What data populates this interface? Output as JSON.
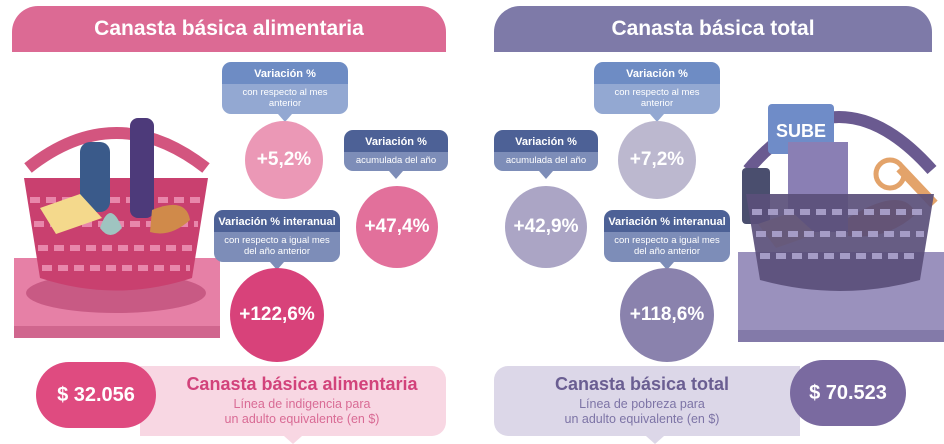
{
  "left": {
    "header": "Canasta básica alimentaria",
    "tag_monthly": {
      "title": "Variación %",
      "sub": "con respecto al mes anterior",
      "value": "+5,2%"
    },
    "tag_yearly": {
      "title": "Variación %",
      "sub": "acumulada del año",
      "value": "+47,4%"
    },
    "tag_interannual": {
      "title": "Variación % interanual",
      "sub": "con respecto a igual mes del año anterior",
      "value": "+122,6%"
    },
    "price": "$ 32.056",
    "band_title": "Canasta básica alimentaria",
    "band_sub_1": "Línea de indigencia para",
    "band_sub_2": "un adulto equivalente (en $)"
  },
  "right": {
    "header": "Canasta básica total",
    "tag_monthly": {
      "title": "Variación %",
      "sub": "con respecto al mes anterior",
      "value": "+7,2%"
    },
    "tag_yearly": {
      "title": "Variación %",
      "sub": "acumulada del año",
      "value": "+42,9%"
    },
    "tag_interannual": {
      "title": "Variación % interanual",
      "sub": "con respecto a igual mes del año anterior",
      "value": "+118,6%"
    },
    "price": "$ 70.523",
    "band_title": "Canasta básica total",
    "band_sub_1": "Línea de pobreza para",
    "band_sub_2": "un adulto equivalente (en $)",
    "card_text": "SUBE"
  },
  "colors": {
    "pink": "#dc6a94",
    "purple": "#7e7aa8",
    "blue_tag": "#6e8cc4",
    "navy_tag": "#4d6196"
  }
}
